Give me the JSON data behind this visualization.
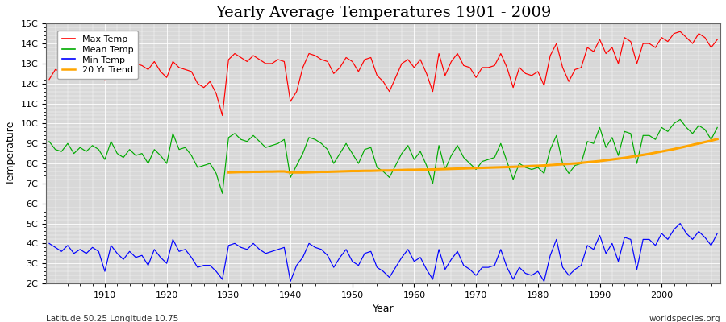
{
  "title": "Yearly Average Temperatures 1901 - 2009",
  "xlabel": "Year",
  "ylabel": "Temperature",
  "subtitle_left": "Latitude 50.25 Longitude 10.75",
  "subtitle_right": "worldspecies.org",
  "years": [
    1901,
    1902,
    1903,
    1904,
    1905,
    1906,
    1907,
    1908,
    1909,
    1910,
    1911,
    1912,
    1913,
    1914,
    1915,
    1916,
    1917,
    1918,
    1919,
    1920,
    1921,
    1922,
    1923,
    1924,
    1925,
    1926,
    1927,
    1928,
    1929,
    1930,
    1931,
    1932,
    1933,
    1934,
    1935,
    1936,
    1937,
    1938,
    1939,
    1940,
    1941,
    1942,
    1943,
    1944,
    1945,
    1946,
    1947,
    1948,
    1949,
    1950,
    1951,
    1952,
    1953,
    1954,
    1955,
    1956,
    1957,
    1958,
    1959,
    1960,
    1961,
    1962,
    1963,
    1964,
    1965,
    1966,
    1967,
    1968,
    1969,
    1970,
    1971,
    1972,
    1973,
    1974,
    1975,
    1976,
    1977,
    1978,
    1979,
    1980,
    1981,
    1982,
    1983,
    1984,
    1985,
    1986,
    1987,
    1988,
    1989,
    1990,
    1991,
    1992,
    1993,
    1994,
    1995,
    1996,
    1997,
    1998,
    1999,
    2000,
    2001,
    2002,
    2003,
    2004,
    2005,
    2006,
    2007,
    2008,
    2009
  ],
  "max_temp": [
    12.2,
    12.7,
    12.6,
    12.9,
    12.8,
    12.9,
    12.7,
    13.0,
    12.5,
    12.2,
    12.4,
    13.0,
    12.8,
    13.2,
    13.0,
    12.9,
    12.7,
    13.1,
    12.6,
    12.3,
    13.1,
    12.8,
    12.7,
    12.6,
    12.0,
    11.8,
    12.1,
    11.5,
    10.4,
    13.2,
    13.5,
    13.3,
    13.1,
    13.4,
    13.2,
    13.0,
    13.0,
    13.2,
    13.1,
    11.1,
    11.6,
    12.8,
    13.5,
    13.4,
    13.2,
    13.1,
    12.5,
    12.8,
    13.3,
    13.1,
    12.6,
    13.2,
    13.3,
    12.4,
    12.1,
    11.6,
    12.3,
    13.0,
    13.2,
    12.8,
    13.2,
    12.5,
    11.6,
    13.5,
    12.4,
    13.1,
    13.5,
    12.9,
    12.8,
    12.3,
    12.8,
    12.8,
    12.9,
    13.5,
    12.8,
    11.8,
    12.8,
    12.5,
    12.4,
    12.6,
    11.9,
    13.4,
    14.0,
    12.8,
    12.1,
    12.7,
    12.8,
    13.8,
    13.6,
    14.2,
    13.5,
    13.8,
    13.0,
    14.3,
    14.1,
    13.0,
    14.0,
    14.0,
    13.8,
    14.3,
    14.1,
    14.5,
    14.6,
    14.3,
    14.0,
    14.5,
    14.3,
    13.8,
    14.2
  ],
  "mean_temp": [
    9.1,
    8.7,
    8.6,
    9.0,
    8.5,
    8.8,
    8.6,
    8.9,
    8.7,
    8.2,
    9.1,
    8.5,
    8.3,
    8.7,
    8.4,
    8.5,
    8.0,
    8.7,
    8.4,
    8.0,
    9.5,
    8.7,
    8.8,
    8.4,
    7.8,
    7.9,
    8.0,
    7.5,
    6.5,
    9.3,
    9.5,
    9.2,
    9.1,
    9.4,
    9.1,
    8.8,
    8.9,
    9.0,
    9.2,
    7.3,
    7.9,
    8.5,
    9.3,
    9.2,
    9.0,
    8.7,
    8.0,
    8.5,
    9.0,
    8.5,
    8.0,
    8.7,
    8.8,
    7.8,
    7.6,
    7.3,
    7.9,
    8.5,
    8.9,
    8.2,
    8.6,
    7.9,
    7.0,
    8.9,
    7.7,
    8.4,
    8.9,
    8.3,
    8.0,
    7.7,
    8.1,
    8.2,
    8.3,
    9.0,
    8.1,
    7.2,
    8.0,
    7.8,
    7.7,
    7.8,
    7.5,
    8.7,
    9.4,
    8.0,
    7.5,
    7.9,
    8.0,
    9.1,
    9.0,
    9.8,
    8.8,
    9.3,
    8.4,
    9.6,
    9.5,
    8.0,
    9.4,
    9.4,
    9.2,
    9.8,
    9.6,
    10.0,
    10.2,
    9.8,
    9.5,
    9.9,
    9.7,
    9.2,
    9.8
  ],
  "min_temp": [
    4.0,
    3.8,
    3.6,
    3.9,
    3.5,
    3.7,
    3.5,
    3.8,
    3.6,
    2.6,
    3.9,
    3.5,
    3.2,
    3.6,
    3.3,
    3.4,
    2.9,
    3.7,
    3.3,
    3.0,
    4.2,
    3.6,
    3.7,
    3.3,
    2.8,
    2.9,
    2.9,
    2.6,
    2.2,
    3.9,
    4.0,
    3.8,
    3.7,
    4.0,
    3.7,
    3.5,
    3.6,
    3.7,
    3.8,
    2.1,
    2.9,
    3.3,
    4.0,
    3.8,
    3.7,
    3.4,
    2.8,
    3.3,
    3.7,
    3.1,
    2.9,
    3.5,
    3.6,
    2.8,
    2.6,
    2.3,
    2.8,
    3.3,
    3.7,
    3.1,
    3.3,
    2.7,
    2.2,
    3.7,
    2.7,
    3.2,
    3.6,
    2.9,
    2.7,
    2.4,
    2.8,
    2.8,
    2.9,
    3.7,
    2.8,
    2.2,
    2.8,
    2.5,
    2.4,
    2.6,
    2.1,
    3.4,
    4.2,
    2.8,
    2.4,
    2.7,
    2.9,
    3.9,
    3.7,
    4.4,
    3.5,
    4.0,
    3.1,
    4.3,
    4.2,
    2.7,
    4.2,
    4.2,
    3.9,
    4.5,
    4.2,
    4.7,
    5.0,
    4.5,
    4.2,
    4.6,
    4.3,
    3.9,
    4.5
  ],
  "trend_years": [
    1930,
    1931,
    1932,
    1933,
    1934,
    1935,
    1936,
    1937,
    1938,
    1939,
    1940,
    1941,
    1942,
    1943,
    1944,
    1945,
    1946,
    1947,
    1948,
    1949,
    1950,
    1951,
    1952,
    1953,
    1954,
    1955,
    1956,
    1957,
    1958,
    1959,
    1960,
    1961,
    1962,
    1963,
    1964,
    1965,
    1966,
    1967,
    1968,
    1969,
    1970,
    1971,
    1972,
    1973,
    1974,
    1975,
    1976,
    1977,
    1978,
    1979,
    1980,
    1981,
    1982,
    1983,
    1984,
    1985,
    1986,
    1987,
    1988,
    1989,
    1990,
    1991,
    1992,
    1993,
    1994,
    1995,
    1996,
    1997,
    1998,
    1999,
    2000,
    2001,
    2002,
    2003,
    2004,
    2005,
    2006,
    2007,
    2008,
    2009
  ],
  "trend_vals": [
    7.55,
    7.56,
    7.57,
    7.57,
    7.58,
    7.58,
    7.59,
    7.59,
    7.6,
    7.6,
    7.55,
    7.55,
    7.55,
    7.56,
    7.57,
    7.58,
    7.58,
    7.59,
    7.6,
    7.61,
    7.62,
    7.62,
    7.63,
    7.63,
    7.64,
    7.65,
    7.65,
    7.66,
    7.67,
    7.68,
    7.68,
    7.69,
    7.69,
    7.7,
    7.71,
    7.72,
    7.73,
    7.74,
    7.75,
    7.76,
    7.77,
    7.78,
    7.79,
    7.8,
    7.81,
    7.82,
    7.83,
    7.84,
    7.85,
    7.87,
    7.88,
    7.9,
    7.92,
    7.94,
    7.96,
    7.98,
    8.0,
    8.03,
    8.06,
    8.09,
    8.12,
    8.16,
    8.2,
    8.24,
    8.28,
    8.33,
    8.38,
    8.43,
    8.48,
    8.54,
    8.6,
    8.66,
    8.72,
    8.79,
    8.86,
    8.93,
    9.0,
    9.07,
    9.14,
    9.22
  ],
  "ylim": [
    2,
    15
  ],
  "yticks": [
    2,
    3,
    4,
    5,
    6,
    7,
    8,
    9,
    10,
    11,
    12,
    13,
    14,
    15
  ],
  "ytick_labels": [
    "2C",
    "3C",
    "4C",
    "5C",
    "6C",
    "7C",
    "8C",
    "9C",
    "10C",
    "11C",
    "12C",
    "13C",
    "14C",
    "15C"
  ],
  "xlim_left": 1901,
  "xlim_right": 2009,
  "xticks": [
    1910,
    1920,
    1930,
    1940,
    1950,
    1960,
    1970,
    1980,
    1990,
    2000
  ],
  "color_max": "#ff0000",
  "color_mean": "#00aa00",
  "color_min": "#0000ff",
  "color_trend": "#ffa500",
  "bg_color": "#d8d8d8",
  "fig_bg_color": "#ffffff",
  "grid_color": "#ffffff",
  "title_fontsize": 14,
  "axis_label_fontsize": 9,
  "tick_fontsize": 8,
  "legend_fontsize": 8
}
